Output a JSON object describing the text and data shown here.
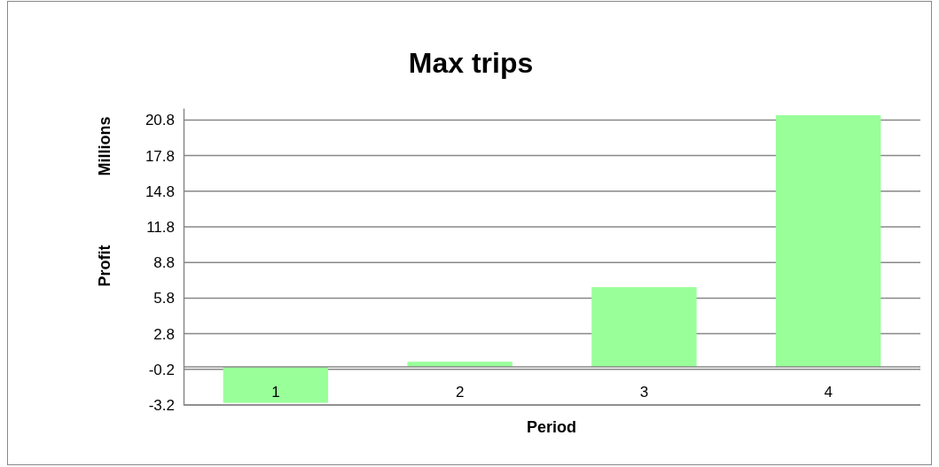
{
  "chart_data": {
    "type": "bar",
    "title": "Max trips",
    "xlabel": "Period",
    "ylabel": "Profit",
    "annotations": [
      "Millions"
    ],
    "categories": [
      "1",
      "2",
      "3",
      "4"
    ],
    "values": [
      -3.02,
      0.44,
      6.72,
      21.2
    ],
    "color": "#99ff99",
    "ylim": [
      -3.2,
      21.8
    ],
    "yticks": [
      -3.2,
      -0.2,
      2.8,
      5.8,
      8.8,
      11.8,
      14.8,
      17.8,
      20.8
    ],
    "grid": "y",
    "ref_lines": [
      {
        "axis": "y",
        "value": 0,
        "color": "#888888"
      }
    ]
  }
}
